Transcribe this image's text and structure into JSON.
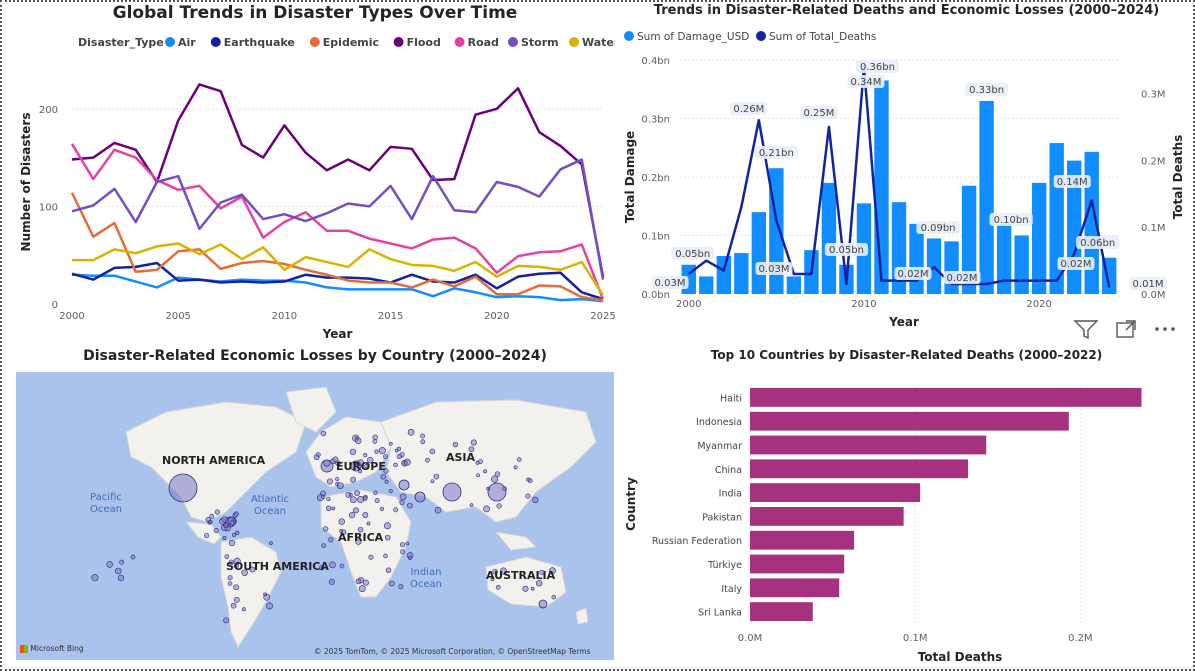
{
  "line_chart": {
    "title": "Global Trends in Disaster Types Over Time",
    "legend_title": "Disaster_Type",
    "xlabel": "Year",
    "ylabel": "Number of Disasters",
    "x_ticks": [
      "2000",
      "2005",
      "2010",
      "2015",
      "2020",
      "2025"
    ],
    "y_ticks": [
      "0",
      "100",
      "200"
    ]
  },
  "combo_chart": {
    "title": "Trends in Disaster-Related Deaths and Economic Losses (2000–2024)",
    "legend": [
      "Sum of Damage_USD",
      "Sum of Total_Deaths"
    ],
    "xlabel": "Year",
    "ylabel_left": "Total Damage",
    "ylabel_right": "Total Deaths",
    "left_ticks": [
      "0.0bn",
      "0.1bn",
      "0.2bn",
      "0.3bn",
      "0.4bn"
    ],
    "right_ticks": [
      "0.0M",
      "0.1M",
      "0.2M",
      "0.3M"
    ],
    "x_ticks": [
      "2000",
      "2010",
      "2020"
    ]
  },
  "map": {
    "title": "Disaster-Related Economic Losses by Country (2000–2024)",
    "continents": [
      "NORTH AMERICA",
      "EUROPE",
      "ASIA",
      "AFRICA",
      "SOUTH AMERICA",
      "AUSTRALIA"
    ],
    "oceans": [
      "Pacific Ocean",
      "Atlantic Ocean",
      "Indian Ocean"
    ],
    "brand": "Microsoft Bing",
    "attribution": "© 2025 TomTom, © 2025 Microsoft Corporation, © OpenStreetMap  Terms"
  },
  "toolbar": {
    "filter_icon": "filter-icon",
    "focus_icon": "focus-mode-icon",
    "more_icon": "more-options-icon"
  },
  "bar_chart": {
    "title": "Top 10 Countries by Disaster-Related Deaths (2000–2022)",
    "xlabel": "Total Deaths",
    "ylabel": "Country",
    "x_ticks": [
      "0.0M",
      "0.1M",
      "0.2M"
    ]
  },
  "chart_data": [
    {
      "type": "line",
      "title": "Global Trends in Disaster Types Over Time",
      "xlabel": "Year",
      "ylabel": "Number of Disasters",
      "xlim": [
        2000,
        2025
      ],
      "ylim": [
        0,
        250
      ],
      "legend_position": "top",
      "x": [
        2000,
        2001,
        2002,
        2003,
        2004,
        2005,
        2006,
        2007,
        2008,
        2009,
        2010,
        2011,
        2012,
        2013,
        2014,
        2015,
        2016,
        2017,
        2018,
        2019,
        2020,
        2021,
        2022,
        2023,
        2024,
        2025
      ],
      "series": [
        {
          "name": "Air",
          "color": "#118dff",
          "values": [
            30,
            29,
            29,
            23,
            17,
            27,
            25,
            23,
            25,
            24,
            24,
            22,
            17,
            15,
            15,
            15,
            15,
            8,
            16,
            12,
            7,
            8,
            7,
            4,
            5,
            3
          ]
        },
        {
          "name": "Earthquake",
          "color": "#12239e",
          "values": [
            31,
            25,
            37,
            38,
            42,
            24,
            25,
            22,
            23,
            22,
            23,
            30,
            27,
            27,
            26,
            22,
            30,
            23,
            22,
            30,
            16,
            28,
            31,
            32,
            12,
            5
          ]
        },
        {
          "name": "Epidemic",
          "color": "#e66c37",
          "values": [
            114,
            69,
            83,
            33,
            35,
            54,
            56,
            36,
            42,
            44,
            41,
            35,
            30,
            24,
            22,
            22,
            17,
            25,
            18,
            28,
            10,
            10,
            19,
            18,
            7,
            4
          ]
        },
        {
          "name": "Flood",
          "color": "#6b007b",
          "values": [
            148,
            150,
            165,
            158,
            125,
            188,
            225,
            218,
            163,
            150,
            183,
            155,
            137,
            148,
            137,
            161,
            159,
            127,
            128,
            194,
            200,
            221,
            176,
            162,
            143,
            28
          ]
        },
        {
          "name": "Road",
          "color": "#e044a7",
          "values": [
            164,
            128,
            158,
            150,
            127,
            117,
            121,
            98,
            110,
            68,
            84,
            94,
            75,
            75,
            67,
            62,
            57,
            66,
            68,
            57,
            32,
            49,
            53,
            54,
            61,
            5
          ]
        },
        {
          "name": "Storm",
          "color": "#744ec2",
          "values": [
            95,
            101,
            118,
            84,
            125,
            131,
            77,
            104,
            112,
            87,
            92,
            85,
            93,
            103,
            100,
            121,
            87,
            131,
            96,
            94,
            125,
            120,
            110,
            138,
            148,
            25
          ]
        },
        {
          "name": "Water",
          "color": "#d9b300",
          "values": [
            45,
            45,
            56,
            52,
            59,
            62,
            51,
            61,
            46,
            58,
            35,
            48,
            43,
            38,
            56,
            46,
            40,
            39,
            34,
            43,
            28,
            39,
            38,
            35,
            43,
            9
          ]
        }
      ]
    },
    {
      "type": "bar",
      "title": "Trends in Disaster-Related Deaths and Economic Losses (2000–2024)",
      "xlabel": "Year",
      "ylabel": "Total Damage",
      "y2label": "Total Deaths",
      "ylim": [
        0,
        0.4
      ],
      "y2lim": [
        0,
        0.35
      ],
      "x": [
        2000,
        2001,
        2002,
        2003,
        2004,
        2005,
        2006,
        2007,
        2008,
        2009,
        2010,
        2011,
        2012,
        2013,
        2014,
        2015,
        2016,
        2017,
        2018,
        2019,
        2020,
        2021,
        2022,
        2023,
        2024
      ],
      "series": [
        {
          "name": "Sum of Damage_USD",
          "unit": "bn",
          "color": "#118dff",
          "values": [
            0.05,
            0.03,
            0.065,
            0.07,
            0.14,
            0.215,
            0.03,
            0.075,
            0.19,
            0.05,
            0.155,
            0.365,
            0.157,
            0.12,
            0.095,
            0.09,
            0.185,
            0.33,
            0.12,
            0.1,
            0.19,
            0.258,
            0.228,
            0.243,
            0.062
          ]
        },
        {
          "name": "Sum of Total_Deaths",
          "unit": "M",
          "color": "#12239e",
          "axis": "right",
          "values": [
            0.03,
            0.05,
            0.035,
            0.13,
            0.26,
            0.11,
            0.03,
            0.03,
            0.25,
            0.015,
            0.34,
            0.02,
            0.02,
            0.02,
            0.04,
            0.015,
            0.015,
            0.015,
            0.02,
            0.02,
            0.02,
            0.02,
            0.06,
            0.14,
            0.01
          ]
        }
      ],
      "data_labels": [
        "0.05bn",
        "0.03M",
        "0.26M",
        "0.21bn",
        "0.03M",
        "0.25M",
        "0.05bn",
        "0.34M",
        "0.36bn",
        "0.02M",
        "0.02M",
        "0.09bn",
        "0.33bn",
        "0.10bn",
        "0.02M",
        "0.14M",
        "0.06bn",
        "0.01M"
      ]
    },
    {
      "type": "bar",
      "orientation": "horizontal",
      "title": "Top 10 Countries by Disaster-Related Deaths (2000–2022)",
      "xlabel": "Total Deaths",
      "ylabel": "Country",
      "xlim": [
        0,
        0.25
      ],
      "color": "#a5317f",
      "categories": [
        "Haiti",
        "Indonesia",
        "Myanmar",
        "China",
        "India",
        "Pakistan",
        "Russian Federation",
        "Türkiye",
        "Italy",
        "Sri Lanka"
      ],
      "values": [
        0.237,
        0.193,
        0.143,
        0.132,
        0.103,
        0.093,
        0.063,
        0.057,
        0.054,
        0.038
      ]
    }
  ]
}
